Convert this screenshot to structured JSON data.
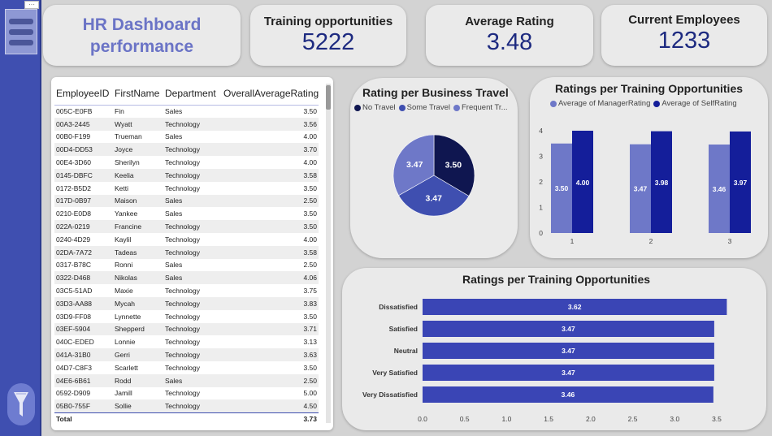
{
  "header": {
    "title": "HR Dashboard performance",
    "menu_dots": "···"
  },
  "kpis": [
    {
      "label": "Training opportunities",
      "value": "5222"
    },
    {
      "label": "Average Rating",
      "value": "3.48"
    },
    {
      "label": "Current Employees",
      "value": "1233"
    }
  ],
  "table": {
    "columns": [
      "EmployeeID",
      "FirstName",
      "Department",
      "OverallAverageRating"
    ],
    "rows": [
      [
        "005C-E0FB",
        "Fin",
        "Sales",
        "3.50"
      ],
      [
        "00A3-2445",
        "Wyatt",
        "Technology",
        "3.56"
      ],
      [
        "00B0-F199",
        "Trueman",
        "Sales",
        "4.00"
      ],
      [
        "00D4-DD53",
        "Joyce",
        "Technology",
        "3.70"
      ],
      [
        "00E4-3D60",
        "Sherilyn",
        "Technology",
        "4.00"
      ],
      [
        "0145-DBFC",
        "Keelia",
        "Technology",
        "3.58"
      ],
      [
        "0172-B5D2",
        "Ketti",
        "Technology",
        "3.50"
      ],
      [
        "017D-0B97",
        "Maison",
        "Sales",
        "2.50"
      ],
      [
        "0210-E0D8",
        "Yankee",
        "Sales",
        "3.50"
      ],
      [
        "022A-0219",
        "Francine",
        "Technology",
        "3.50"
      ],
      [
        "0240-4D29",
        "Kaylil",
        "Technology",
        "4.00"
      ],
      [
        "02DA-7A72",
        "Tadeas",
        "Technology",
        "3.58"
      ],
      [
        "0317-B78C",
        "Ronni",
        "Sales",
        "2.50"
      ],
      [
        "0322-D468",
        "Nikolas",
        "Sales",
        "4.06"
      ],
      [
        "03C5-51AD",
        "Maxie",
        "Technology",
        "3.75"
      ],
      [
        "03D3-AA88",
        "Mycah",
        "Technology",
        "3.83"
      ],
      [
        "03D9-FF08",
        "Lynnette",
        "Technology",
        "3.50"
      ],
      [
        "03EF-5904",
        "Shepperd",
        "Technology",
        "3.71"
      ],
      [
        "040C-EDED",
        "Lonnie",
        "Technology",
        "3.13"
      ],
      [
        "041A-31B0",
        "Gerri",
        "Technology",
        "3.63"
      ],
      [
        "04D7-C8F3",
        "Scarlett",
        "Technology",
        "3.50"
      ],
      [
        "04E6-6B61",
        "Rodd",
        "Sales",
        "2.50"
      ],
      [
        "0592-D909",
        "Jamill",
        "Technology",
        "5.00"
      ],
      [
        "05B0-755F",
        "Sollie",
        "Technology",
        "4.50"
      ]
    ],
    "total_label": "Total",
    "total_value": "3.73"
  },
  "chart_data": [
    {
      "type": "pie",
      "title": "Rating per Business Travel",
      "legend": [
        "No Travel",
        "Some Travel",
        "Frequent Tr..."
      ],
      "values": [
        3.5,
        3.47,
        3.47
      ],
      "labels": [
        "3.50",
        "3.47",
        "3.47"
      ],
      "colors": [
        "#0f1650",
        "#3f4fb0",
        "#6e78c8"
      ]
    },
    {
      "type": "bar",
      "title": "Ratings per Training Opportunities",
      "categories": [
        "1",
        "2",
        "3"
      ],
      "series": [
        {
          "name": "Average of ManagerRating",
          "values": [
            3.5,
            3.47,
            3.46
          ],
          "labels": [
            "3.50",
            "3.47",
            "3.46"
          ],
          "color": "#6e78c8"
        },
        {
          "name": "Average of SelfRating",
          "values": [
            4.0,
            3.98,
            3.97
          ],
          "labels": [
            "4.00",
            "3.98",
            "3.97"
          ],
          "color": "#141e9a"
        }
      ],
      "yticks": [
        "0",
        "1",
        "2",
        "3",
        "4"
      ],
      "ylim": [
        0,
        4
      ]
    },
    {
      "type": "bar",
      "orientation": "horizontal",
      "title": "Ratings per Training Opportunities",
      "categories": [
        "Dissatisfied",
        "Satisfied",
        "Neutral",
        "Very Satisfied",
        "Very Dissatisfied"
      ],
      "values": [
        3.62,
        3.47,
        3.47,
        3.47,
        3.46
      ],
      "labels": [
        "3.62",
        "3.47",
        "3.47",
        "3.47",
        "3.46"
      ],
      "xticks": [
        "0.0",
        "0.5",
        "1.0",
        "1.5",
        "2.0",
        "2.5",
        "3.0",
        "3.5"
      ],
      "xlim": [
        0,
        3.5
      ],
      "color": "#3a45b5"
    }
  ]
}
